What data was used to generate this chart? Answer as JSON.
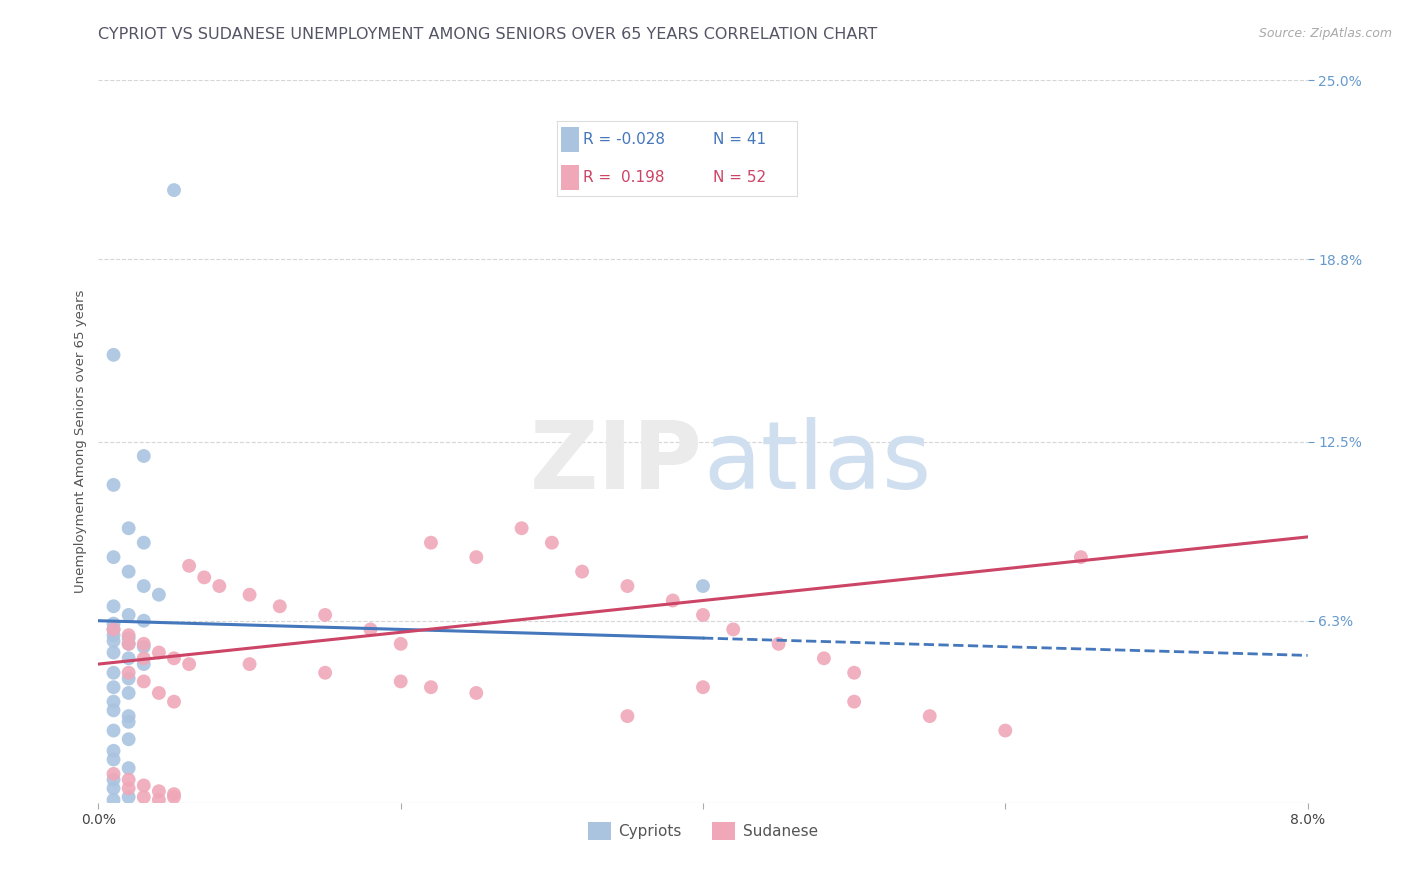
{
  "title": "CYPRIOT VS SUDANESE UNEMPLOYMENT AMONG SENIORS OVER 65 YEARS CORRELATION CHART",
  "source": "Source: ZipAtlas.com",
  "ylabel": "Unemployment Among Seniors over 65 years",
  "xlim": [
    0.0,
    0.08
  ],
  "ylim": [
    0.0,
    0.25
  ],
  "right_ytick_labels": [
    "6.3%",
    "12.5%",
    "18.8%",
    "25.0%"
  ],
  "right_ytick_positions": [
    0.063,
    0.125,
    0.188,
    0.25
  ],
  "cypriot_color": "#aac4e0",
  "sudanese_color": "#f0a8b8",
  "cypriot_line_color": "#4477bb",
  "sudanese_line_color": "#cc4466",
  "right_tick_color": "#6699cc",
  "grid_color": "#cccccc",
  "background_color": "#ffffff",
  "title_color": "#555566",
  "cypriot_R": -0.028,
  "cypriot_N": 41,
  "sudanese_R": 0.198,
  "sudanese_N": 52,
  "cyp_intercept": 0.063,
  "cyp_slope": -0.15,
  "sud_intercept": 0.048,
  "sud_slope": 0.55,
  "cypriot_scatter_x": [
    0.005,
    0.001,
    0.003,
    0.001,
    0.002,
    0.003,
    0.001,
    0.002,
    0.003,
    0.004,
    0.001,
    0.002,
    0.003,
    0.001,
    0.002,
    0.001,
    0.002,
    0.003,
    0.001,
    0.002,
    0.003,
    0.001,
    0.002,
    0.001,
    0.002,
    0.001,
    0.001,
    0.002,
    0.002,
    0.001,
    0.002,
    0.001,
    0.001,
    0.002,
    0.001,
    0.001,
    0.002,
    0.001,
    0.04,
    0.001,
    0.001
  ],
  "cypriot_scatter_y": [
    0.212,
    0.155,
    0.12,
    0.11,
    0.095,
    0.09,
    0.085,
    0.08,
    0.075,
    0.072,
    0.068,
    0.065,
    0.063,
    0.058,
    0.057,
    0.056,
    0.055,
    0.054,
    0.052,
    0.05,
    0.048,
    0.045,
    0.043,
    0.04,
    0.038,
    0.035,
    0.032,
    0.03,
    0.028,
    0.025,
    0.022,
    0.018,
    0.015,
    0.012,
    0.008,
    0.005,
    0.002,
    0.001,
    0.075,
    0.062,
    0.06
  ],
  "sudanese_scatter_x": [
    0.001,
    0.002,
    0.003,
    0.004,
    0.005,
    0.006,
    0.002,
    0.003,
    0.004,
    0.005,
    0.006,
    0.007,
    0.008,
    0.01,
    0.012,
    0.015,
    0.018,
    0.02,
    0.022,
    0.025,
    0.01,
    0.015,
    0.02,
    0.022,
    0.025,
    0.028,
    0.03,
    0.032,
    0.035,
    0.038,
    0.04,
    0.042,
    0.045,
    0.048,
    0.05,
    0.035,
    0.04,
    0.05,
    0.055,
    0.06,
    0.065,
    0.002,
    0.003,
    0.004,
    0.005,
    0.001,
    0.002,
    0.003,
    0.004,
    0.005,
    0.002,
    0.003
  ],
  "sudanese_scatter_y": [
    0.06,
    0.058,
    0.055,
    0.052,
    0.05,
    0.048,
    0.045,
    0.042,
    0.038,
    0.035,
    0.082,
    0.078,
    0.075,
    0.072,
    0.068,
    0.065,
    0.06,
    0.055,
    0.09,
    0.085,
    0.048,
    0.045,
    0.042,
    0.04,
    0.038,
    0.095,
    0.09,
    0.08,
    0.075,
    0.07,
    0.065,
    0.06,
    0.055,
    0.05,
    0.045,
    0.03,
    0.04,
    0.035,
    0.03,
    0.025,
    0.085,
    0.005,
    0.002,
    0.001,
    0.003,
    0.01,
    0.008,
    0.006,
    0.004,
    0.002,
    0.055,
    0.05
  ],
  "title_fontsize": 11.5,
  "axis_label_fontsize": 9.5,
  "tick_fontsize": 10,
  "source_fontsize": 9
}
